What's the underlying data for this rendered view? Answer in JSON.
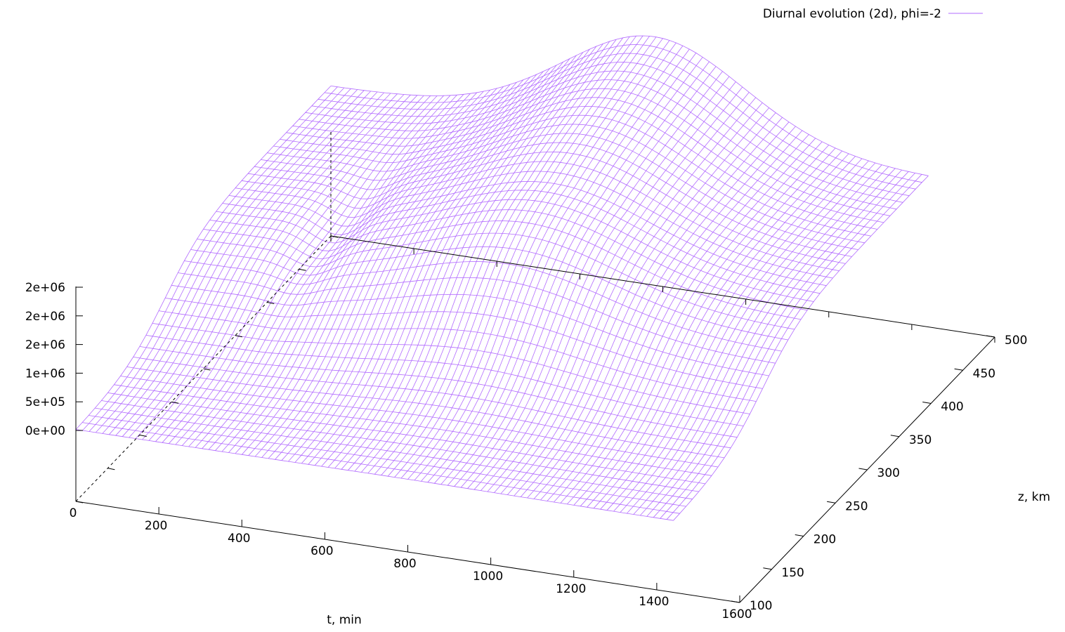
{
  "chart_data": {
    "type": "surface",
    "title": "",
    "legend": {
      "entries": [
        {
          "label": "Diurnal evolution (2d), phi=-2",
          "color": "#b26bff"
        }
      ],
      "position": "top-right"
    },
    "xlabel": "t, min",
    "ylabel": "z, km",
    "zlabel": "",
    "xlim": [
      0,
      1600
    ],
    "ylim": [
      100,
      500
    ],
    "x_ticks": [
      "0",
      "200",
      "400",
      "600",
      "800",
      "1000",
      "1200",
      "1400",
      "1600"
    ],
    "y_ticks": [
      "100",
      "150",
      "200",
      "250",
      "300",
      "350",
      "400",
      "450",
      "500"
    ],
    "z_ticks": [
      "0e+00",
      "5e+05",
      "1e+06",
      "2e+06",
      "2e+06",
      "2e+06"
    ],
    "grid": false,
    "surface": {
      "t_range": [
        0,
        1440
      ],
      "z_range": [
        100,
        500
      ],
      "description_values": {
        "baseline_at_z100": 0,
        "daytime_peak_time_min": 780,
        "max_value_approx": 2000000
      }
    }
  }
}
